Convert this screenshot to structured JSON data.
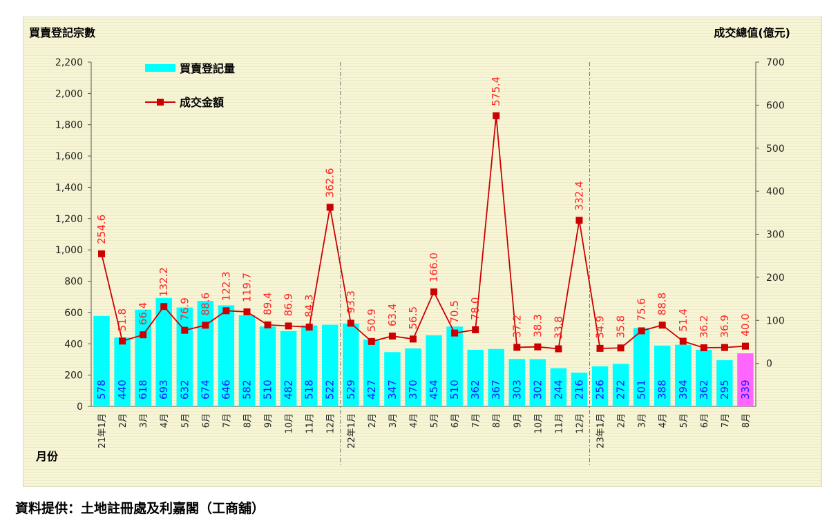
{
  "chart_data": {
    "type": "bar",
    "left_axis_title": "買賣登記宗數",
    "right_axis_title": "成交總值(億元)",
    "x_axis_title": "月份",
    "left_ticks": [
      "2,200",
      "2,000",
      "1,800",
      "1,600",
      "1,400",
      "1,200",
      "1,000",
      "800",
      "600",
      "400",
      "200",
      "0"
    ],
    "left_ylim": [
      0,
      2200
    ],
    "right_ticks": [
      "700",
      "600",
      "500",
      "400",
      "300",
      "200",
      "100",
      "0"
    ],
    "right_ylim": [
      -100,
      700
    ],
    "grid": false,
    "legend_position": "top-left",
    "categories": [
      "21年1月",
      "2月",
      "3月",
      "4月",
      "5月",
      "6月",
      "7月",
      "8月",
      "9月",
      "10月",
      "11月",
      "12月",
      "22年1月",
      "2月",
      "3月",
      "4月",
      "5月",
      "6月",
      "7月",
      "8月",
      "9月",
      "10月",
      "11月",
      "12月",
      "23年1月",
      "2月",
      "3月",
      "4月",
      "5月",
      "6月",
      "7月",
      "8月"
    ],
    "series": [
      {
        "name": "買賣登記量",
        "type": "bar",
        "axis": "left",
        "color": "#00ffff",
        "highlight_color": "#ff66ff",
        "values": [
          578,
          440,
          618,
          693,
          632,
          674,
          646,
          582,
          510,
          482,
          518,
          522,
          529,
          427,
          347,
          370,
          454,
          510,
          362,
          367,
          303,
          302,
          244,
          216,
          256,
          272,
          501,
          388,
          394,
          362,
          295,
          339
        ],
        "labels": [
          "578",
          "440",
          "618",
          "693",
          "632",
          "674",
          "646",
          "582",
          "510",
          "482",
          "518",
          "522",
          "529",
          "427",
          "347",
          "370",
          "454",
          "510",
          "362",
          "367",
          "303",
          "302",
          "244",
          "216",
          "256",
          "272",
          "501",
          "388",
          "394",
          "362",
          "295",
          "339"
        ]
      },
      {
        "name": "成交金額",
        "type": "line",
        "axis": "right",
        "color": "#cc0000",
        "label_color": "#ff2222",
        "values": [
          254.6,
          51.8,
          66.4,
          132.2,
          76.9,
          88.6,
          122.3,
          119.7,
          89.4,
          86.9,
          84.3,
          362.6,
          93.3,
          50.9,
          63.4,
          56.5,
          166.0,
          70.5,
          78.0,
          575.4,
          37.2,
          38.3,
          33.8,
          332.4,
          34.9,
          35.8,
          75.6,
          88.8,
          51.4,
          36.2,
          36.9,
          40.0
        ],
        "labels": [
          "254.6",
          "51.8",
          "66.4",
          "132.2",
          "76.9",
          "88.6",
          "122.3",
          "119.7",
          "89.4",
          "86.9",
          "84.3",
          "362.6",
          "93.3",
          "50.9",
          "63.4",
          "56.5",
          "166.0",
          "70.5",
          "78.0",
          "575.4",
          "37.2",
          "38.3",
          "33.8",
          "332.4",
          "34.9",
          "35.8",
          "75.6",
          "88.8",
          "51.4",
          "36.2",
          "36.9",
          "40.0"
        ]
      }
    ]
  },
  "footer": {
    "credit": "資料提供：土地註冊處及利嘉閣（工商舖）"
  }
}
